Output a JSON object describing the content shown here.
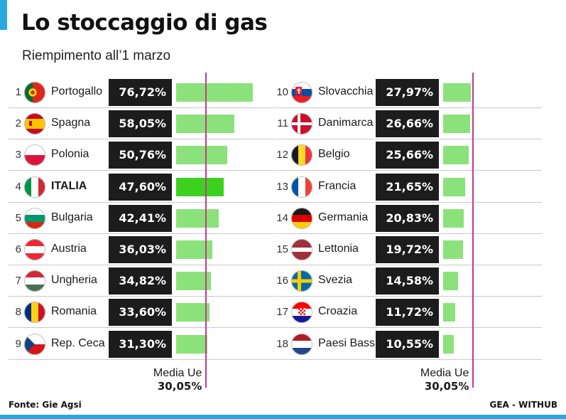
{
  "colors": {
    "accent": "#29a8e0",
    "bar": "#8be27a",
    "bar_highlight": "#3dd11f",
    "mean_line": "#c23b8c",
    "value_box": "#1c1c1c"
  },
  "title": "Lo stoccaggio di gas",
  "subtitle": "Riempimento all’1 marzo",
  "footer": {
    "source": "Fonte: Gie Agsi",
    "credit": "GEA - WITHUB"
  },
  "chart_data": {
    "type": "bar",
    "title": "Lo stoccaggio di gas",
    "subtitle": "Riempimento all’1 marzo",
    "unit": "%",
    "mean": {
      "label": "Media Ue",
      "value": 30.05,
      "value_label": "30,05%"
    },
    "columns": [
      {
        "items": [
          {
            "rank": "1",
            "country": "Portogallo",
            "value": 76.72,
            "label": "76,72%",
            "flag": "portugal-flag-icon"
          },
          {
            "rank": "2",
            "country": "Spagna",
            "value": 58.05,
            "label": "58,05%",
            "flag": "spain-flag-icon"
          },
          {
            "rank": "3",
            "country": "Polonia",
            "value": 50.76,
            "label": "50,76%",
            "flag": "poland-flag-icon"
          },
          {
            "rank": "4",
            "country": "ITALIA",
            "value": 47.6,
            "label": "47,60%",
            "flag": "italy-flag-icon",
            "highlight": true
          },
          {
            "rank": "5",
            "country": "Bulgaria",
            "value": 42.41,
            "label": "42,41%",
            "flag": "bulgaria-flag-icon"
          },
          {
            "rank": "6",
            "country": "Austria",
            "value": 36.03,
            "label": "36,03%",
            "flag": "austria-flag-icon"
          },
          {
            "rank": "7",
            "country": "Ungheria",
            "value": 34.82,
            "label": "34,82%",
            "flag": "hungary-flag-icon"
          },
          {
            "rank": "8",
            "country": "Romania",
            "value": 33.6,
            "label": "33,60%",
            "flag": "romania-flag-icon"
          },
          {
            "rank": "9",
            "country": "Rep. Ceca",
            "value": 31.3,
            "label": "31,30%",
            "flag": "czechia-flag-icon"
          }
        ]
      },
      {
        "items": [
          {
            "rank": "10",
            "country": "Slovacchia",
            "value": 27.97,
            "label": "27,97%",
            "flag": "slovakia-flag-icon"
          },
          {
            "rank": "11",
            "country": "Danimarca",
            "value": 26.66,
            "label": "26,66%",
            "flag": "denmark-flag-icon"
          },
          {
            "rank": "12",
            "country": "Belgio",
            "value": 25.66,
            "label": "25,66%",
            "flag": "belgium-flag-icon"
          },
          {
            "rank": "13",
            "country": "Francia",
            "value": 21.65,
            "label": "21,65%",
            "flag": "france-flag-icon"
          },
          {
            "rank": "14",
            "country": "Germania",
            "value": 20.83,
            "label": "20,83%",
            "flag": "germany-flag-icon"
          },
          {
            "rank": "15",
            "country": "Lettonia",
            "value": 19.72,
            "label": "19,72%",
            "flag": "latvia-flag-icon"
          },
          {
            "rank": "16",
            "country": "Svezia",
            "value": 14.58,
            "label": "14,58%",
            "flag": "sweden-flag-icon"
          },
          {
            "rank": "17",
            "country": "Croazia",
            "value": 11.72,
            "label": "11,72%",
            "flag": "croatia-flag-icon"
          },
          {
            "rank": "18",
            "country": "Paesi Bassi",
            "value": 10.55,
            "label": "10,55%",
            "flag": "netherlands-flag-icon"
          }
        ]
      }
    ]
  }
}
